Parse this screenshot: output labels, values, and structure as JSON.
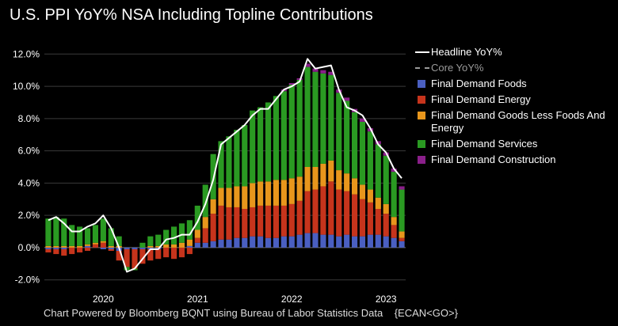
{
  "chart_data": {
    "type": "bar",
    "stacked": true,
    "title": "U.S. PPI YoY% NSA Including Topline Contributions",
    "xlabel": "",
    "ylabel": "",
    "ylim": [
      -2.8,
      12.8
    ],
    "yticks": [
      -2.0,
      0.0,
      2.0,
      4.0,
      6.0,
      8.0,
      10.0,
      12.0
    ],
    "ytick_labels": [
      "-2.0%",
      "0.0%",
      "2.0%",
      "4.0%",
      "6.0%",
      "8.0%",
      "10.0%",
      "12.0%"
    ],
    "xtick_labels": [
      {
        "label": "2020",
        "at_index": 7
      },
      {
        "label": "2021",
        "at_index": 19
      },
      {
        "label": "2022",
        "at_index": 31
      },
      {
        "label": "2023",
        "at_index": 43
      }
    ],
    "categories": [
      "2019-06",
      "2019-07",
      "2019-08",
      "2019-09",
      "2019-10",
      "2019-11",
      "2019-12",
      "2020-01",
      "2020-02",
      "2020-03",
      "2020-04",
      "2020-05",
      "2020-06",
      "2020-07",
      "2020-08",
      "2020-09",
      "2020-10",
      "2020-11",
      "2020-12",
      "2021-01",
      "2021-02",
      "2021-03",
      "2021-04",
      "2021-05",
      "2021-06",
      "2021-07",
      "2021-08",
      "2021-09",
      "2021-10",
      "2021-11",
      "2021-12",
      "2022-01",
      "2022-02",
      "2022-03",
      "2022-04",
      "2022-05",
      "2022-06",
      "2022-07",
      "2022-08",
      "2022-09",
      "2022-10",
      "2022-11",
      "2022-12",
      "2023-01",
      "2023-02",
      "2023-03"
    ],
    "series": [
      {
        "name": "Final Demand Foods",
        "color": "#4a5fc1",
        "values": [
          -0.1,
          -0.1,
          -0.1,
          0.0,
          0.0,
          0.1,
          0.0,
          -0.1,
          -0.1,
          -0.2,
          -0.1,
          -0.1,
          -0.1,
          -0.1,
          -0.1,
          0.0,
          0.0,
          0.0,
          0.1,
          0.3,
          0.3,
          0.4,
          0.5,
          0.5,
          0.6,
          0.6,
          0.7,
          0.7,
          0.6,
          0.6,
          0.7,
          0.7,
          0.8,
          0.9,
          0.9,
          0.8,
          0.8,
          0.7,
          0.8,
          0.7,
          0.7,
          0.8,
          0.8,
          0.7,
          0.6,
          0.4
        ]
      },
      {
        "name": "Final Demand Energy",
        "color": "#c6341c",
        "values": [
          -0.2,
          -0.3,
          -0.4,
          -0.4,
          -0.3,
          -0.2,
          0.2,
          0.3,
          -0.1,
          -0.6,
          -1.1,
          -1.2,
          -0.9,
          -0.7,
          -0.6,
          -0.6,
          -0.7,
          -0.6,
          -0.4,
          0.3,
          0.9,
          1.7,
          2.1,
          2.0,
          1.9,
          1.8,
          1.8,
          1.9,
          2.0,
          2.0,
          1.9,
          2.0,
          2.1,
          2.6,
          2.7,
          3.0,
          3.3,
          2.9,
          2.7,
          2.6,
          2.3,
          2.0,
          1.6,
          1.4,
          0.8,
          0.2
        ]
      },
      {
        "name": "Final Demand Goods Less Foods And Energy",
        "color": "#e8961c",
        "values": [
          0.1,
          0.1,
          0.1,
          0.1,
          0.1,
          0.1,
          0.1,
          0.1,
          0.1,
          0.1,
          0.0,
          0.0,
          0.0,
          0.1,
          0.1,
          0.2,
          0.2,
          0.3,
          0.4,
          0.5,
          0.7,
          0.9,
          1.1,
          1.2,
          1.3,
          1.4,
          1.5,
          1.5,
          1.5,
          1.6,
          1.6,
          1.6,
          1.5,
          1.5,
          1.4,
          1.4,
          1.3,
          1.2,
          1.1,
          1.0,
          0.9,
          0.8,
          0.7,
          0.6,
          0.5,
          0.4
        ]
      },
      {
        "name": "Final Demand Services",
        "color": "#2a9a22",
        "values": [
          1.7,
          1.8,
          1.7,
          1.3,
          1.2,
          1.0,
          1.1,
          1.4,
          1.1,
          0.6,
          -0.2,
          -0.1,
          0.3,
          0.6,
          0.7,
          0.9,
          1.1,
          1.2,
          1.2,
          1.5,
          2.0,
          2.8,
          2.9,
          3.2,
          3.5,
          3.8,
          4.5,
          4.6,
          4.9,
          5.2,
          5.5,
          5.8,
          6.0,
          6.2,
          5.9,
          5.6,
          5.3,
          4.8,
          4.5,
          4.1,
          3.9,
          3.6,
          3.3,
          3.0,
          2.8,
          2.6
        ]
      },
      {
        "name": "Final Demand Construction",
        "color": "#8a1f8a",
        "values": [
          0.0,
          0.0,
          0.0,
          0.0,
          0.0,
          0.0,
          0.0,
          0.0,
          0.0,
          0.0,
          0.0,
          0.0,
          0.0,
          0.0,
          0.0,
          0.0,
          0.0,
          0.0,
          0.0,
          0.0,
          0.0,
          0.0,
          0.0,
          0.0,
          0.0,
          0.0,
          0.0,
          0.0,
          0.0,
          0.0,
          0.1,
          0.1,
          0.1,
          0.2,
          0.2,
          0.2,
          0.2,
          0.2,
          0.2,
          0.2,
          0.2,
          0.2,
          0.2,
          0.2,
          0.2,
          0.2
        ]
      }
    ],
    "lines": [
      {
        "name": "Headline YoY%",
        "color": "#ffffff",
        "values": [
          1.7,
          1.9,
          1.5,
          1.0,
          1.0,
          1.3,
          1.5,
          2.0,
          1.2,
          0.0,
          -1.5,
          -1.3,
          -0.7,
          -0.1,
          -0.1,
          0.5,
          0.6,
          0.8,
          0.8,
          1.6,
          2.7,
          4.2,
          6.4,
          6.8,
          7.2,
          7.6,
          8.2,
          8.6,
          8.6,
          9.2,
          9.8,
          10.0,
          10.3,
          11.7,
          11.1,
          11.2,
          11.3,
          9.8,
          8.7,
          8.5,
          8.2,
          7.4,
          6.4,
          5.9,
          4.9,
          4.3
        ]
      },
      {
        "name": "Core YoY%",
        "color": "#9a9a9a",
        "style": "dashed",
        "values": []
      }
    ]
  },
  "legend": {
    "items": [
      {
        "label": "Headline YoY%",
        "kind": "line",
        "color": "#ffffff"
      },
      {
        "label": "Core YoY%",
        "kind": "dashed",
        "color": "#9a9a9a"
      },
      {
        "label": "Final Demand Foods",
        "kind": "square",
        "color": "#4a5fc1"
      },
      {
        "label": "Final Demand Energy",
        "kind": "square",
        "color": "#c6341c"
      },
      {
        "label": "Final Demand Goods Less Foods And Energy",
        "kind": "square",
        "color": "#e8961c"
      },
      {
        "label": "Final Demand Services",
        "kind": "square",
        "color": "#2a9a22"
      },
      {
        "label": "Final Demand Construction",
        "kind": "square",
        "color": "#8a1f8a"
      }
    ]
  },
  "footer": {
    "source": "Chart Powered by Bloomberg BQNT using Bureau of Labor Statistics Data",
    "command": "{ECAN<GO>}"
  }
}
